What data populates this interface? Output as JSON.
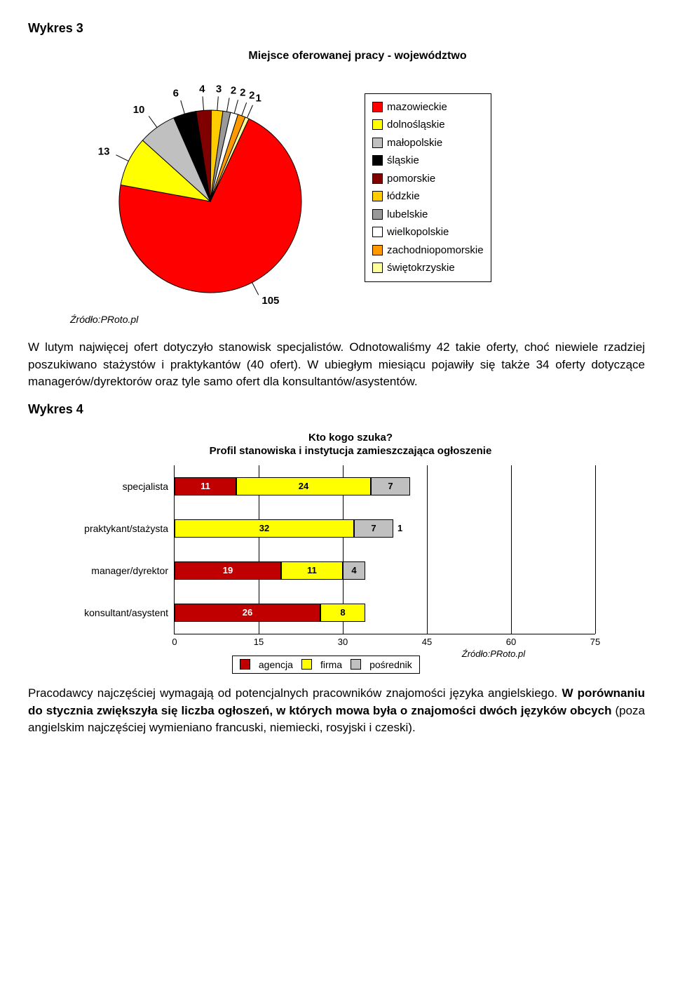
{
  "heading1": "Wykres 3",
  "pie": {
    "title": "Miejsce oferowanej pracy - województwo",
    "source": "Źródło:PRoto.pl",
    "slices": [
      {
        "label": "mazowieckie",
        "value": 105,
        "color": "#ff0000"
      },
      {
        "label": "dolnośląskie",
        "value": 13,
        "color": "#ffff00"
      },
      {
        "label": "małopolskie",
        "value": 10,
        "color": "#c0c0c0"
      },
      {
        "label": "śląskie",
        "value": 6,
        "color": "#000000"
      },
      {
        "label": "pomorskie",
        "value": 4,
        "color": "#800000"
      },
      {
        "label": "łódzkie",
        "value": 3,
        "color": "#ffcc00"
      },
      {
        "label": "lubelskie",
        "value": 2,
        "color": "#999999"
      },
      {
        "label": "wielkopolskie",
        "value": 2,
        "color": "#ffffff"
      },
      {
        "label": "zachodniopomorskie",
        "value": 2,
        "color": "#ff9900"
      },
      {
        "label": "świętokrzyskie",
        "value": 1,
        "color": "#ffff99"
      }
    ]
  },
  "para1_a": "W lutym najwięcej ofert dotyczyło stanowisk specjalistów. Odnotowaliśmy 42 takie oferty, choć niewiele rzadziej poszukiwano stażystów i praktykantów (40 ofert). W ubiegłym miesiącu pojawiły się także 34 oferty dotyczące managerów/dyrektorów oraz tyle samo ofert dla konsultantów/asystentów.",
  "heading2": "Wykres 4",
  "bar": {
    "title_l1": "Kto kogo szuka?",
    "title_l2": "Profil stanowiska i instytucja zamieszczająca ogłoszenie",
    "categories": [
      "specjalista",
      "praktykant/stażysta",
      "manager/dyrektor",
      "konsultant/asystent"
    ],
    "series": [
      {
        "name": "agencja",
        "color": "#c00000",
        "values": [
          11,
          0,
          19,
          26
        ]
      },
      {
        "name": "firma",
        "color": "#ffff00",
        "values": [
          24,
          32,
          11,
          8
        ]
      },
      {
        "name": "pośrednik",
        "color": "#c0c0c0",
        "values": [
          7,
          7,
          4,
          0
        ]
      },
      {
        "name": "outlabel",
        "color": "",
        "values": [
          null,
          1,
          null,
          null
        ]
      }
    ],
    "xmax": 75,
    "xticks": [
      0,
      15,
      30,
      45,
      60,
      75
    ],
    "source": "Źródło:PRoto.pl",
    "legend": [
      "agencja",
      "firma",
      "pośrednik"
    ]
  },
  "para2_a": "Pracodawcy najczęściej wymagają od potencjalnych pracowników znajomości języka angielskiego. ",
  "para2_b": "W porównaniu do stycznia zwiększyła się liczba ogłoszeń, w których mowa była o znajomości dwóch języków obcych",
  "para2_c": " (poza angielskim najczęściej wymieniano francuski, niemiecki, rosyjski i czeski)."
}
